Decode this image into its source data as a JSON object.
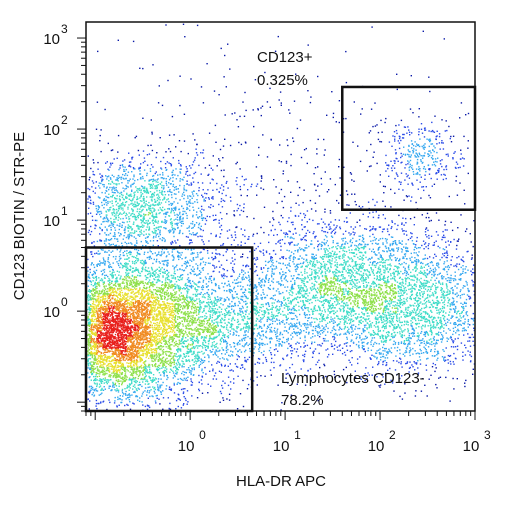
{
  "chart_data": {
    "type": "scatter",
    "subtype": "flow-cytometry-density-dot-plot",
    "xlabel": "HLA-DR APC",
    "ylabel": "CD123 BIOTIN / STR-PE",
    "x_scale": "log",
    "y_scale": "log",
    "xlim": [
      0.08,
      1000
    ],
    "ylim": [
      0.08,
      1500
    ],
    "x_ticks": [
      {
        "value": 1,
        "base": "10",
        "exp": "0"
      },
      {
        "value": 10,
        "base": "10",
        "exp": "1"
      },
      {
        "value": 100,
        "base": "10",
        "exp": "2"
      },
      {
        "value": 1000,
        "base": "10",
        "exp": "3"
      }
    ],
    "y_ticks": [
      {
        "value": 1,
        "base": "10",
        "exp": "0"
      },
      {
        "value": 10,
        "base": "10",
        "exp": "1"
      },
      {
        "value": 100,
        "base": "10",
        "exp": "2"
      },
      {
        "value": 1000,
        "base": "10",
        "exp": "3"
      }
    ],
    "gates": [
      {
        "name": "CD123+",
        "value": "0.325%",
        "x_range": [
          40,
          1000
        ],
        "y_range": [
          13,
          290
        ]
      },
      {
        "name": "Lymphocytes CD123-",
        "value": "78.2%",
        "x_range": [
          0.08,
          4.5
        ],
        "y_range": [
          0.08,
          5
        ]
      }
    ],
    "populations": [
      {
        "x_center": 0.25,
        "y_center": 0.78,
        "density": "very high",
        "peak_color": "#e8201c"
      },
      {
        "x_center": 0.32,
        "y_center": 14,
        "density": "moderate",
        "peak_color": "#3a6ff0"
      },
      {
        "x_center": 60,
        "y_center": 2.6,
        "density": "moderate",
        "peak_color": "#38c3e6"
      },
      {
        "x_center": 240,
        "y_center": 1.1,
        "density": "moderate",
        "peak_color": "#39c7d9"
      },
      {
        "x_center": 250,
        "y_center": 40,
        "density": "low",
        "peak_color": "#1c2fbf"
      }
    ],
    "colormap": [
      "#0a1aa8",
      "#2a4be8",
      "#35a8f0",
      "#3fdcc8",
      "#8ee04a",
      "#e8e030",
      "#f08a20",
      "#e8201c"
    ]
  }
}
